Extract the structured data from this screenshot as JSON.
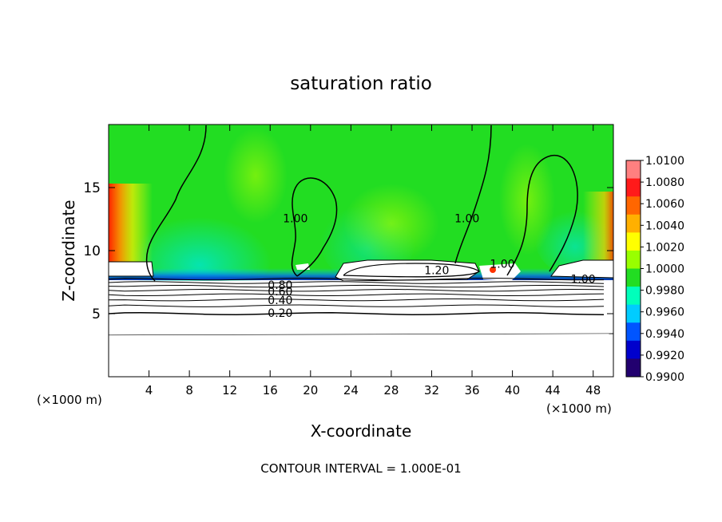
{
  "chart_data": {
    "type": "heatmap",
    "title": "saturation ratio",
    "xlabel": "X-coordinate",
    "ylabel": "Z-coordinate",
    "x_unit_left": "(×1000 m)",
    "x_unit_right": "(×1000 m)",
    "footer": "CONTOUR INTERVAL = 1.000E-01",
    "xlim": [
      0,
      50
    ],
    "ylim": [
      0,
      20
    ],
    "x_ticks": [
      "4",
      "8",
      "12",
      "16",
      "20",
      "24",
      "28",
      "32",
      "36",
      "40",
      "44",
      "48"
    ],
    "x_tick_values": [
      4,
      8,
      12,
      16,
      20,
      24,
      28,
      32,
      36,
      40,
      44,
      48
    ],
    "y_ticks": [
      "5",
      "10",
      "15"
    ],
    "y_tick_values": [
      5,
      10,
      15
    ],
    "colorbar": {
      "labels": [
        "1.0100",
        "1.0080",
        "1.0060",
        "1.0040",
        "1.0020",
        "1.0000",
        "0.9980",
        "0.9960",
        "0.9940",
        "0.9920",
        "0.9900"
      ],
      "values": [
        1.01,
        1.008,
        1.006,
        1.004,
        1.002,
        1.0,
        0.998,
        0.996,
        0.994,
        0.992,
        0.99
      ],
      "colors": [
        "#ff8080",
        "#ff1a1a",
        "#ff6600",
        "#ffb000",
        "#ffff00",
        "#99ff00",
        "#22dd22",
        "#00ffbb",
        "#00ccff",
        "#0055ff",
        "#0000cc",
        "#22006f"
      ]
    },
    "contour_labels": [
      {
        "text": "1.00",
        "x": 18.5,
        "z": 12.5
      },
      {
        "text": "1.00",
        "x": 35.5,
        "z": 12.5
      },
      {
        "text": "1.00",
        "x": 39.0,
        "z": 8.9
      },
      {
        "text": "1.00",
        "x": 47.0,
        "z": 7.7
      },
      {
        "text": "1.20",
        "x": 32.5,
        "z": 8.4
      },
      {
        "text": "0.80",
        "x": 17.0,
        "z": 7.2
      },
      {
        "text": "0.60",
        "x": 17.0,
        "z": 6.7
      },
      {
        "text": "0.40",
        "x": 17.0,
        "z": 6.0
      },
      {
        "text": "0.20",
        "x": 17.0,
        "z": 5.0
      }
    ],
    "contour_levels_below": [
      0.2,
      0.3,
      0.4,
      0.5,
      0.6,
      0.7,
      0.8,
      0.9
    ],
    "subsaturated_below_z": 8
  }
}
